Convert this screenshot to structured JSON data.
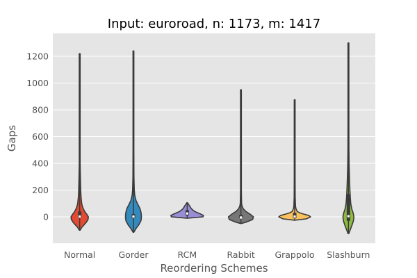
{
  "chart_data": {
    "type": "violin",
    "title": "Input: euroroad, n: 1173, m: 1417",
    "xlabel": "Reordering Schemes",
    "ylabel": "Gaps",
    "ylim": [
      -200,
      1360
    ],
    "yticks": [
      0,
      200,
      400,
      600,
      800,
      1000,
      1200
    ],
    "grid": true,
    "categories": [
      "Normal",
      "Gorder",
      "RCM",
      "Rabbit",
      "Grappolo",
      "Slashburn"
    ],
    "colors": [
      "#e24a33",
      "#348abd",
      "#988ed5",
      "#777777",
      "#fbc15e",
      "#8eba42"
    ],
    "series": [
      {
        "min": -100,
        "q1": -5,
        "median": 2,
        "q3": 40,
        "max": 1220,
        "profile": [
          [
            -100,
            0.02
          ],
          [
            -80,
            0.12
          ],
          [
            -60,
            0.26
          ],
          [
            -40,
            0.4
          ],
          [
            -20,
            0.5
          ],
          [
            0,
            0.52
          ],
          [
            20,
            0.42
          ],
          [
            40,
            0.3
          ],
          [
            60,
            0.22
          ],
          [
            80,
            0.16
          ],
          [
            100,
            0.12
          ],
          [
            150,
            0.08
          ],
          [
            200,
            0.06
          ],
          [
            300,
            0.04
          ],
          [
            400,
            0.025
          ],
          [
            600,
            0.02
          ],
          [
            800,
            0.015
          ],
          [
            1000,
            0.012
          ],
          [
            1220,
            0.01
          ]
        ]
      },
      {
        "min": -115,
        "q1": -10,
        "median": 2,
        "q3": 20,
        "max": 1240,
        "profile": [
          [
            -115,
            0.02
          ],
          [
            -90,
            0.14
          ],
          [
            -60,
            0.32
          ],
          [
            -30,
            0.45
          ],
          [
            0,
            0.48
          ],
          [
            30,
            0.46
          ],
          [
            60,
            0.4
          ],
          [
            90,
            0.28
          ],
          [
            120,
            0.16
          ],
          [
            160,
            0.08
          ],
          [
            200,
            0.05
          ],
          [
            300,
            0.03
          ],
          [
            500,
            0.02
          ],
          [
            800,
            0.015
          ],
          [
            1000,
            0.012
          ],
          [
            1240,
            0.01
          ]
        ]
      },
      {
        "min": -10,
        "q1": 10,
        "median": 25,
        "q3": 50,
        "max": 105,
        "profile": [
          [
            -10,
            0.02
          ],
          [
            0,
            0.95
          ],
          [
            10,
            0.98
          ],
          [
            20,
            0.82
          ],
          [
            30,
            0.64
          ],
          [
            40,
            0.46
          ],
          [
            50,
            0.35
          ],
          [
            60,
            0.26
          ],
          [
            70,
            0.2
          ],
          [
            80,
            0.16
          ],
          [
            90,
            0.1
          ],
          [
            100,
            0.05
          ],
          [
            105,
            0.02
          ]
        ]
      },
      {
        "min": -50,
        "q1": -10,
        "median": -5,
        "q3": 15,
        "max": 950,
        "profile": [
          [
            -50,
            0.02
          ],
          [
            -40,
            0.3
          ],
          [
            -20,
            0.7
          ],
          [
            0,
            0.75
          ],
          [
            20,
            0.55
          ],
          [
            40,
            0.3
          ],
          [
            60,
            0.14
          ],
          [
            80,
            0.07
          ],
          [
            100,
            0.04
          ],
          [
            200,
            0.025
          ],
          [
            400,
            0.02
          ],
          [
            700,
            0.015
          ],
          [
            950,
            0.01
          ]
        ]
      },
      {
        "min": -25,
        "q1": -10,
        "median": 2,
        "q3": 30,
        "max": 875,
        "profile": [
          [
            -25,
            0.02
          ],
          [
            -15,
            0.7
          ],
          [
            0,
            0.95
          ],
          [
            10,
            0.85
          ],
          [
            20,
            0.55
          ],
          [
            30,
            0.3
          ],
          [
            40,
            0.15
          ],
          [
            60,
            0.08
          ],
          [
            80,
            0.05
          ],
          [
            150,
            0.03
          ],
          [
            300,
            0.02
          ],
          [
            600,
            0.015
          ],
          [
            875,
            0.01
          ]
        ]
      },
      {
        "min": -125,
        "q1": -30,
        "median": 5,
        "q3": 170,
        "max": 1300,
        "profile": [
          [
            -125,
            0.02
          ],
          [
            -100,
            0.1
          ],
          [
            -60,
            0.22
          ],
          [
            -30,
            0.3
          ],
          [
            0,
            0.33
          ],
          [
            30,
            0.28
          ],
          [
            60,
            0.2
          ],
          [
            100,
            0.14
          ],
          [
            150,
            0.11
          ],
          [
            200,
            0.09
          ],
          [
            300,
            0.06
          ],
          [
            400,
            0.04
          ],
          [
            500,
            0.03
          ],
          [
            700,
            0.025
          ],
          [
            1000,
            0.02
          ],
          [
            1300,
            0.01
          ]
        ]
      }
    ]
  }
}
